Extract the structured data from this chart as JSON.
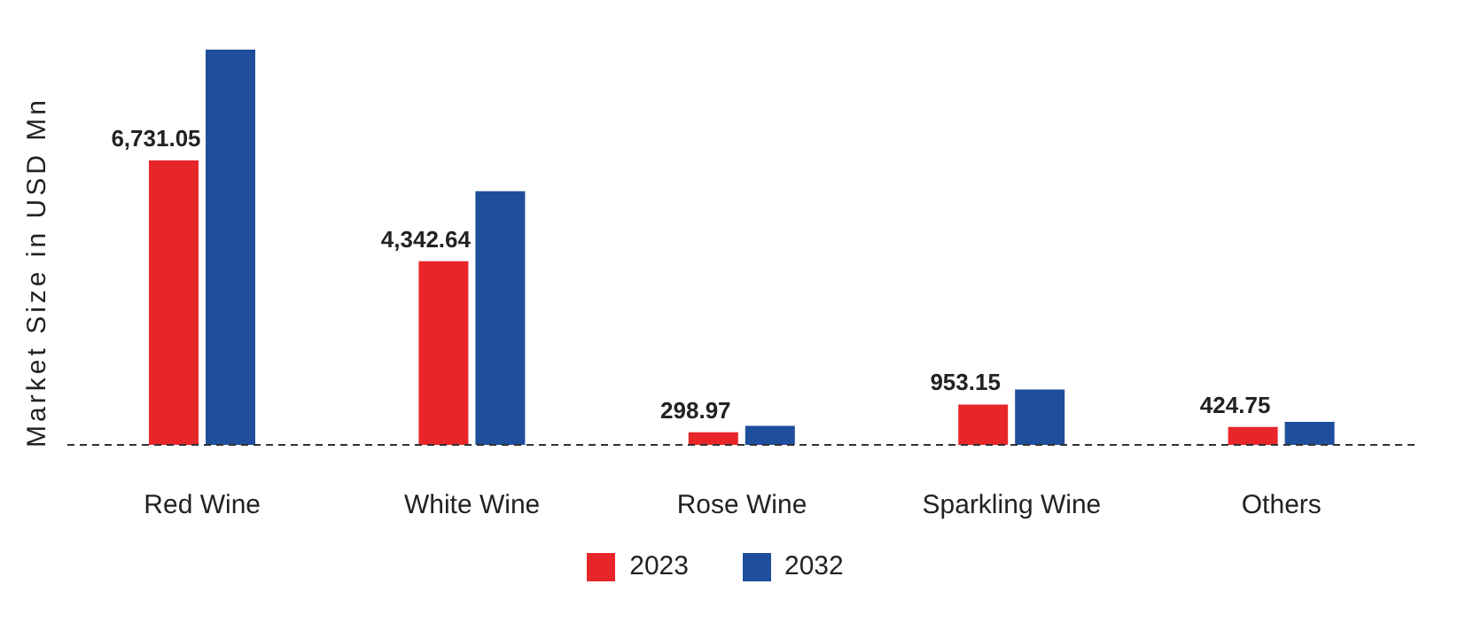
{
  "chart_data": {
    "type": "bar",
    "ylabel": "Market Size in USD Mn",
    "categories": [
      "Red Wine",
      "White Wine",
      "Rose Wine",
      "Sparkling Wine",
      "Others"
    ],
    "series": [
      {
        "name": "2023",
        "color": "#e8262a",
        "values": [
          6731.05,
          4342.64,
          298.97,
          953.15,
          424.75
        ],
        "value_labels": [
          "6,731.05",
          "4,342.64",
          "298.97",
          "953.15",
          "424.75"
        ]
      },
      {
        "name": "2032",
        "color": "#1f4e9c",
        "values": [
          9350,
          6000,
          450,
          1310,
          545
        ]
      }
    ],
    "tick_labels": "x",
    "legend": "bottom",
    "grid": false
  }
}
